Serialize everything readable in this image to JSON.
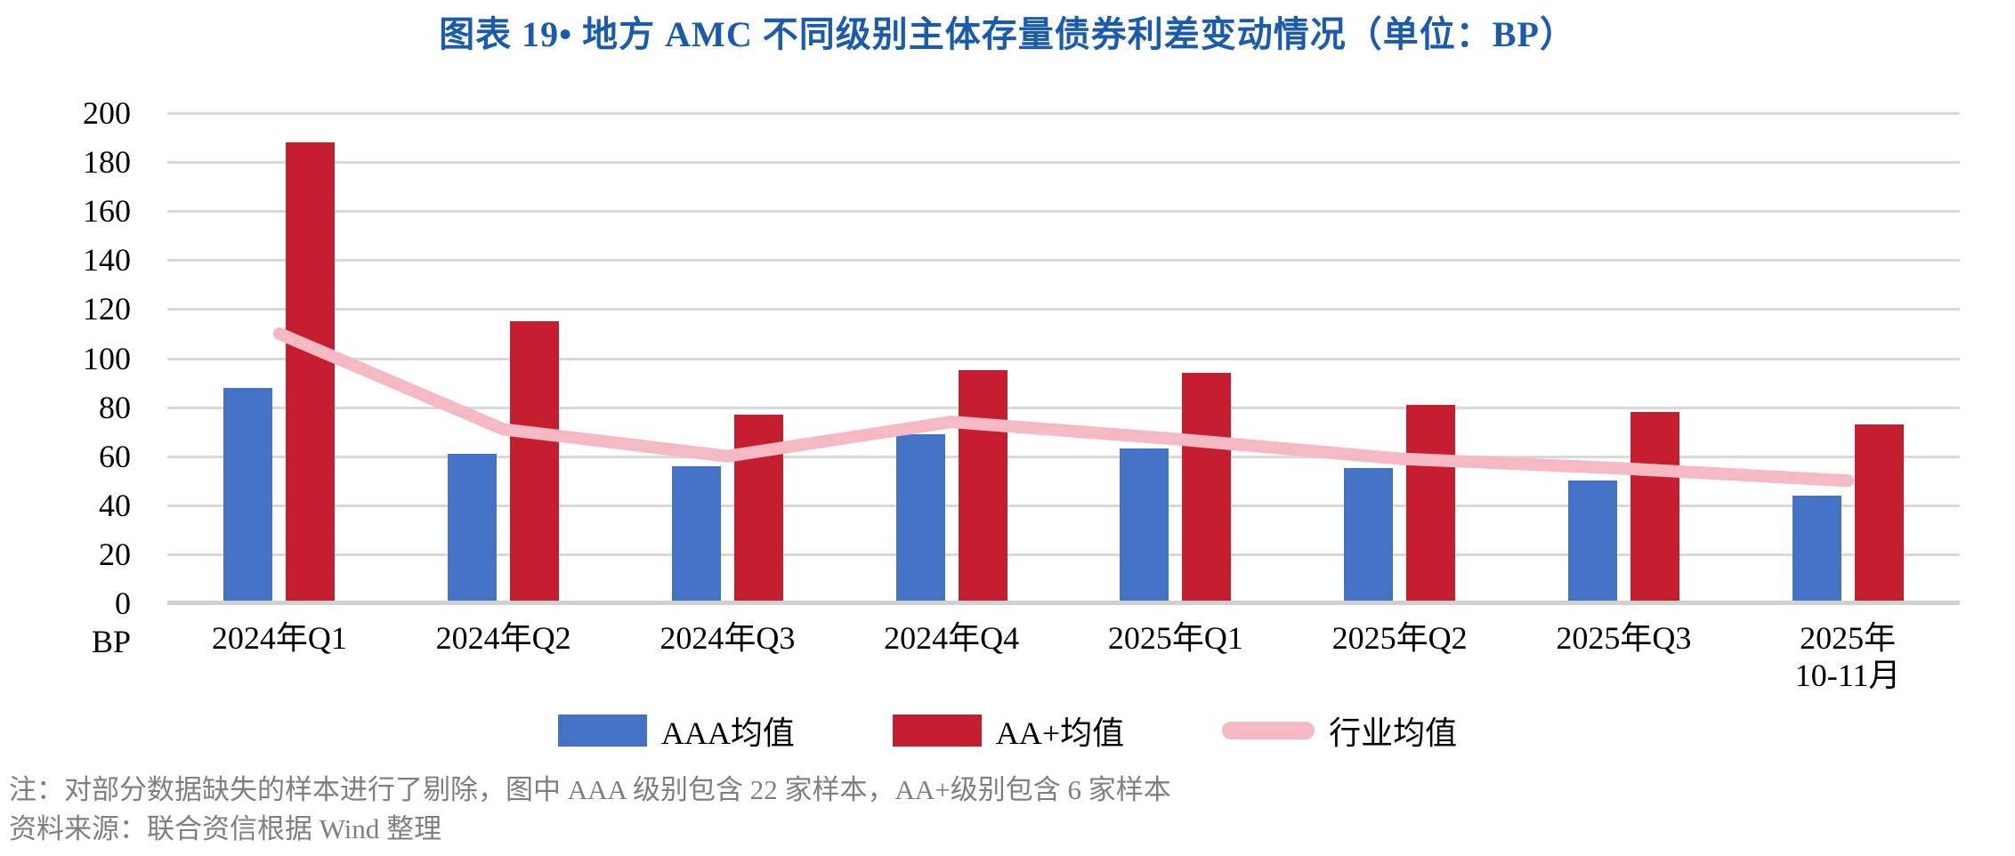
{
  "title": {
    "text": "图表 19• 地方 AMC 不同级别主体存量债券利差变动情况（单位：BP）",
    "color": "#1A5BAC"
  },
  "chart_data": {
    "type": "bar",
    "subtype": "grouped bars with overlaid line",
    "categories": [
      "2024年Q1",
      "2024年Q2",
      "2024年Q3",
      "2024年Q4",
      "2025年Q1",
      "2025年Q2",
      "2025年Q3",
      "2025年10-11月"
    ],
    "xtick_labels": [
      "2024年Q1",
      "2024年Q2",
      "2024年Q3",
      "2024年Q4",
      "2025年Q1",
      "2025年Q2",
      "2025年Q3",
      "2025年\n10-11月"
    ],
    "series": [
      {
        "name": "AAA均值",
        "type": "bar",
        "color": "#4472C4",
        "values": [
          88,
          61,
          56,
          69,
          63,
          55,
          50,
          44
        ]
      },
      {
        "name": "AA+均值",
        "type": "bar",
        "color": "#C51E30",
        "values": [
          188,
          115,
          77,
          95,
          94,
          81,
          78,
          73
        ]
      },
      {
        "name": "行业均值",
        "type": "line",
        "color": "#F4B9C2",
        "values": [
          110,
          71,
          60,
          74,
          67,
          59,
          55,
          50
        ]
      }
    ],
    "xlabel": "",
    "ylabel": "BP",
    "ylim": [
      0,
      200
    ],
    "yticks": [
      200,
      180,
      160,
      140,
      120,
      100,
      80,
      60,
      40,
      20,
      0
    ],
    "grid": true,
    "gridline_color": "#D9D9D9",
    "legend_position": "bottom"
  },
  "footnotes": {
    "note": "注：对部分数据缺失的样本进行了剔除，图中 AAA 级别包含 22 家样本，AA+级别包含 6 家样本",
    "source": "资料来源：联合资信根据 Wind 整理"
  }
}
